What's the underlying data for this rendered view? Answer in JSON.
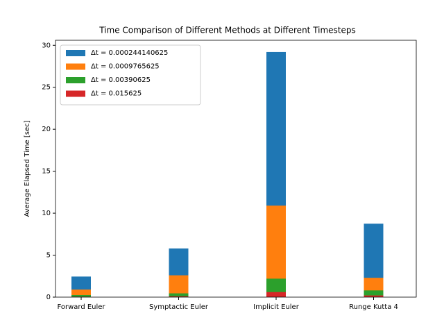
{
  "chart_data": {
    "type": "bar",
    "overlap": true,
    "title": "Time Comparison of Different Methods at Different Timesteps",
    "y_label": "Average Elapsed Time [sec]",
    "categories": [
      "Forward Euler",
      "Symptactic Euler",
      "Implicit Euler",
      "Runge Kutta 4"
    ],
    "series": [
      {
        "name": "Δt = 0.000244140625",
        "color": "#1f77b4",
        "values": [
          2.45,
          5.8,
          29.2,
          8.75
        ]
      },
      {
        "name": "Δt = 0.0009765625",
        "color": "#ff7f0e",
        "values": [
          0.9,
          2.6,
          10.9,
          2.3
        ]
      },
      {
        "name": "Δt = 0.00390625",
        "color": "#2ca02c",
        "values": [
          0.25,
          0.45,
          2.2,
          0.8
        ]
      },
      {
        "name": "Δt = 0.015625",
        "color": "#d62728",
        "values": [
          0.05,
          0.1,
          0.6,
          0.2
        ]
      }
    ],
    "ylim": [
      0,
      30.6
    ],
    "yticks": [
      0,
      5,
      10,
      15,
      20,
      25,
      30
    ],
    "legend": "upper left"
  }
}
